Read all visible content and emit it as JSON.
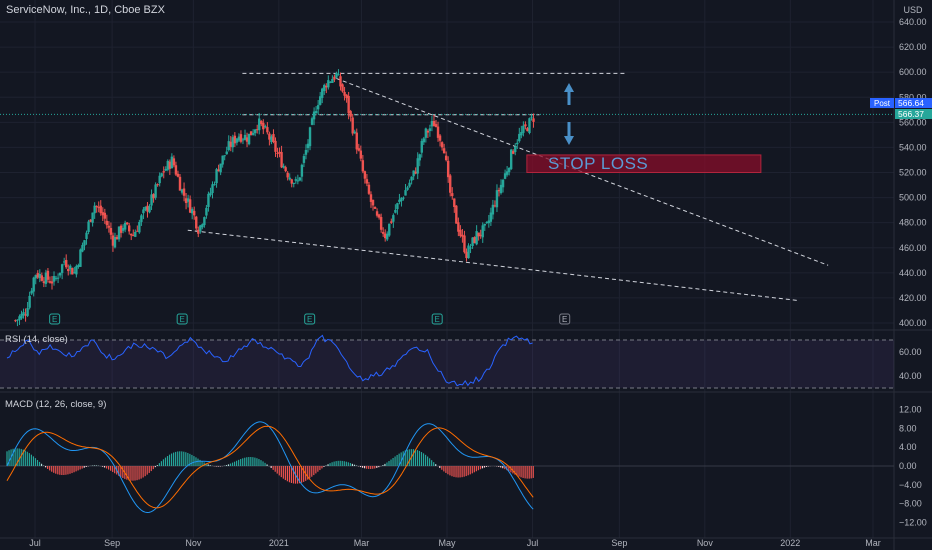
{
  "header": {
    "title": "ServiceNow, Inc., 1D, Cboe BZX",
    "currency": "USD"
  },
  "colors": {
    "up": "#26a69a",
    "down": "#ef5350",
    "bg": "#131722",
    "grid": "#1e2230",
    "rsi_line": "#2962ff",
    "macd_line": "#2196f3",
    "signal_line": "#ff6d00",
    "stop_fill": "#880e2a",
    "stop_text": "#5b9bd5",
    "arrow": "#4a90c8"
  },
  "annotations": {
    "stop_loss_text": "STOP LOSS",
    "post_label": "Post",
    "post_price": "566.64",
    "last_price": "566.37",
    "earnings_marker": "E"
  },
  "chart_data": [
    {
      "type": "candlestick",
      "title": "ServiceNow, Inc., 1D, Cboe BZX",
      "ylim": [
        395,
        650
      ],
      "y_ticks": [
        "640.00",
        "620.00",
        "600.00",
        "580.00",
        "560.00",
        "540.00",
        "520.00",
        "500.00",
        "480.00",
        "460.00",
        "440.00",
        "420.00",
        "400.00"
      ],
      "x_ticks": [
        "Jul",
        "Sep",
        "Nov",
        "2021",
        "Mar",
        "May",
        "Jul",
        "Sep",
        "Nov",
        "2022",
        "Mar"
      ],
      "price_path": [
        [
          "2020-07-01",
          402
        ],
        [
          "2020-07-08",
          408
        ],
        [
          "2020-07-15",
          440
        ],
        [
          "2020-07-22",
          436
        ],
        [
          "2020-07-29",
          433
        ],
        [
          "2020-08-05",
          450
        ],
        [
          "2020-08-12",
          440
        ],
        [
          "2020-08-19",
          465
        ],
        [
          "2020-08-26",
          495
        ],
        [
          "2020-09-02",
          485
        ],
        [
          "2020-09-09",
          465
        ],
        [
          "2020-09-16",
          478
        ],
        [
          "2020-09-23",
          470
        ],
        [
          "2020-09-30",
          486
        ],
        [
          "2020-10-07",
          500
        ],
        [
          "2020-10-14",
          520
        ],
        [
          "2020-10-21",
          530
        ],
        [
          "2020-10-28",
          505
        ],
        [
          "2020-11-04",
          490
        ],
        [
          "2020-11-09",
          474
        ],
        [
          "2020-11-16",
          500
        ],
        [
          "2020-11-23",
          525
        ],
        [
          "2020-11-30",
          540
        ],
        [
          "2020-12-07",
          550
        ],
        [
          "2020-12-14",
          548
        ],
        [
          "2020-12-21",
          560
        ],
        [
          "2020-12-28",
          550
        ],
        [
          "2021-01-04",
          535
        ],
        [
          "2021-01-11",
          520
        ],
        [
          "2021-01-18",
          510
        ],
        [
          "2021-01-25",
          540
        ],
        [
          "2021-02-01",
          575
        ],
        [
          "2021-02-08",
          592
        ],
        [
          "2021-02-15",
          598
        ],
        [
          "2021-02-22",
          578
        ],
        [
          "2021-03-01",
          545
        ],
        [
          "2021-03-08",
          510
        ],
        [
          "2021-03-15",
          485
        ],
        [
          "2021-03-22",
          470
        ],
        [
          "2021-03-29",
          490
        ],
        [
          "2021-04-05",
          505
        ],
        [
          "2021-04-12",
          520
        ],
        [
          "2021-04-19",
          550
        ],
        [
          "2021-04-26",
          560
        ],
        [
          "2021-05-03",
          540
        ],
        [
          "2021-05-06",
          510
        ],
        [
          "2021-05-12",
          480
        ],
        [
          "2021-05-19",
          455
        ],
        [
          "2021-05-26",
          470
        ],
        [
          "2021-06-02",
          475
        ],
        [
          "2021-06-09",
          500
        ],
        [
          "2021-06-16",
          520
        ],
        [
          "2021-06-23",
          545
        ],
        [
          "2021-06-30",
          555
        ],
        [
          "2021-07-07",
          566
        ]
      ],
      "lines": [
        {
          "name": "top resistance",
          "from": [
            "2020-12-10",
            599
          ],
          "to": [
            "2021-09-10",
            599
          ],
          "style": "dashed"
        },
        {
          "name": "neckline",
          "from": [
            "2020-12-10",
            566
          ],
          "to": [
            "2021-07-10",
            566
          ],
          "style": "dashed"
        },
        {
          "name": "upper trendline",
          "from": [
            "2021-02-15",
            595
          ],
          "to": [
            "2022-02-01",
            446
          ],
          "style": "dashed"
        },
        {
          "name": "lower trendline",
          "from": [
            "2020-11-01",
            474
          ],
          "to": [
            "2022-01-10",
            418
          ],
          "style": "dashed"
        },
        {
          "name": "last price",
          "at": 566.37,
          "style": "dotted"
        }
      ],
      "stop_loss_zone": {
        "x": [
          "2021-07-01",
          "2021-12-15"
        ],
        "y": [
          520,
          534
        ]
      },
      "earnings_dates": [
        "2020-07-29",
        "2020-10-28",
        "2021-01-27",
        "2021-04-28",
        "2021-07-28"
      ]
    },
    {
      "type": "line",
      "title": "RSI (14, close)",
      "ylim": [
        30,
        80
      ],
      "y_ticks": [
        "60.00",
        "40.00"
      ],
      "bands": [
        70,
        30
      ],
      "y": [
        55,
        62,
        70,
        58,
        66,
        60,
        56,
        64,
        70,
        58,
        54,
        62,
        66,
        64,
        60,
        56,
        65,
        72,
        64,
        58,
        52,
        56,
        65,
        70,
        64,
        60,
        55,
        48,
        55,
        72,
        70,
        58,
        44,
        36,
        40,
        44,
        48,
        58,
        64,
        62,
        44,
        34,
        33,
        35,
        38,
        50,
        66,
        72,
        70,
        68
      ]
    },
    {
      "type": "bar+line",
      "title": "MACD (12, 26, close, 9)",
      "ylim": [
        -14,
        14
      ],
      "y_ticks": [
        "12.00",
        "8.00",
        "4.00",
        "0.00",
        "−4.00",
        "−8.00",
        "−12.00"
      ]
    }
  ]
}
